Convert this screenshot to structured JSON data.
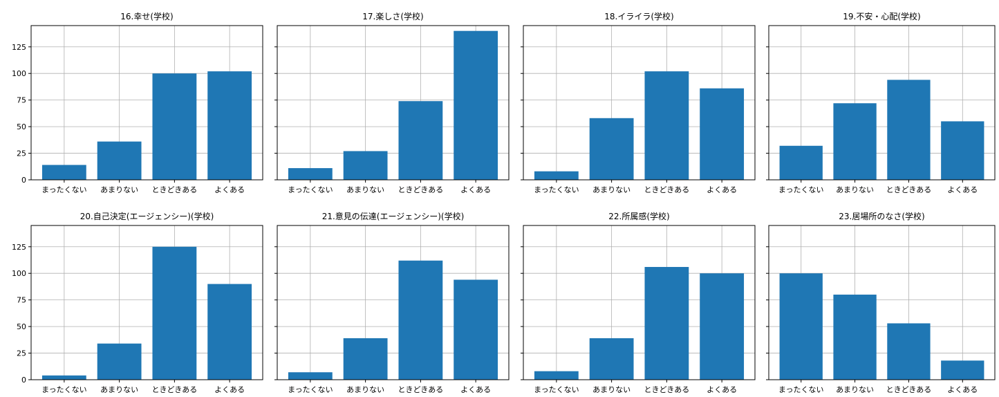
{
  "chart_data": [
    {
      "type": "bar",
      "title": "16.幸せ(学校)",
      "categories": [
        "まったくない",
        "あまりない",
        "ときどきある",
        "よくある"
      ],
      "values": [
        14,
        36,
        100,
        102
      ],
      "ylim": [
        0,
        145
      ],
      "yticks": [
        0,
        25,
        50,
        75,
        100,
        125
      ],
      "grid": true,
      "bar_color": "#1f77b4"
    },
    {
      "type": "bar",
      "title": "17.楽しさ(学校)",
      "categories": [
        "まったくない",
        "あまりない",
        "ときどきある",
        "よくある"
      ],
      "values": [
        11,
        27,
        74,
        140
      ],
      "ylim": [
        0,
        145
      ],
      "yticks": [
        0,
        25,
        50,
        75,
        100,
        125
      ],
      "grid": true,
      "bar_color": "#1f77b4"
    },
    {
      "type": "bar",
      "title": "18.イライラ(学校)",
      "categories": [
        "まったくない",
        "あまりない",
        "ときどきある",
        "よくある"
      ],
      "values": [
        8,
        58,
        102,
        86
      ],
      "ylim": [
        0,
        145
      ],
      "yticks": [
        0,
        25,
        50,
        75,
        100,
        125
      ],
      "grid": true,
      "bar_color": "#1f77b4"
    },
    {
      "type": "bar",
      "title": "19.不安・心配(学校)",
      "categories": [
        "まったくない",
        "あまりない",
        "ときどきある",
        "よくある"
      ],
      "values": [
        32,
        72,
        94,
        55
      ],
      "ylim": [
        0,
        145
      ],
      "yticks": [
        0,
        25,
        50,
        75,
        100,
        125
      ],
      "grid": true,
      "bar_color": "#1f77b4"
    },
    {
      "type": "bar",
      "title": "20.自己決定(エージェンシー)(学校)",
      "categories": [
        "まったくない",
        "あまりない",
        "ときどきある",
        "よくある"
      ],
      "values": [
        4,
        34,
        125,
        90
      ],
      "ylim": [
        0,
        145
      ],
      "yticks": [
        0,
        25,
        50,
        75,
        100,
        125
      ],
      "grid": true,
      "bar_color": "#1f77b4"
    },
    {
      "type": "bar",
      "title": "21.意見の伝達(エージェンシー)(学校)",
      "categories": [
        "まったくない",
        "あまりない",
        "ときどきある",
        "よくある"
      ],
      "values": [
        7,
        39,
        112,
        94
      ],
      "ylim": [
        0,
        145
      ],
      "yticks": [
        0,
        25,
        50,
        75,
        100,
        125
      ],
      "grid": true,
      "bar_color": "#1f77b4"
    },
    {
      "type": "bar",
      "title": "22.所属感(学校)",
      "categories": [
        "まったくない",
        "あまりない",
        "ときどきある",
        "よくある"
      ],
      "values": [
        8,
        39,
        106,
        100
      ],
      "ylim": [
        0,
        145
      ],
      "yticks": [
        0,
        25,
        50,
        75,
        100,
        125
      ],
      "grid": true,
      "bar_color": "#1f77b4"
    },
    {
      "type": "bar",
      "title": "23.居場所のなさ(学校)",
      "categories": [
        "まったくない",
        "あまりない",
        "ときどきある",
        "よくある"
      ],
      "values": [
        100,
        80,
        53,
        18
      ],
      "ylim": [
        0,
        145
      ],
      "yticks": [
        0,
        25,
        50,
        75,
        100,
        125
      ],
      "grid": true,
      "bar_color": "#1f77b4"
    }
  ]
}
